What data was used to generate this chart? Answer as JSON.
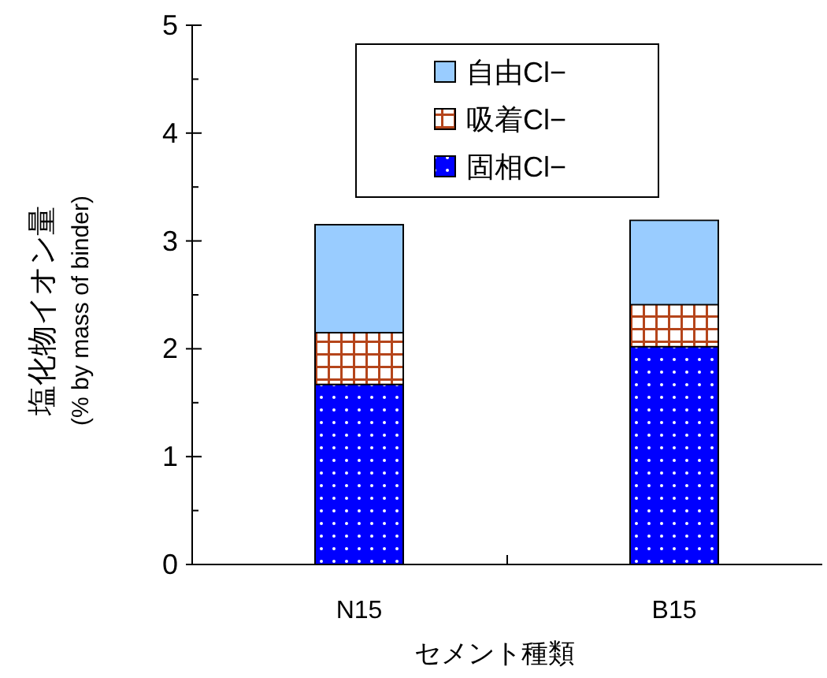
{
  "chart_data": {
    "type": "bar",
    "stacked": true,
    "xlabel": "セメント種類",
    "ylabel": "塩化物イオン量",
    "annotations": [
      "(% by mass of binder)"
    ],
    "categories": [
      "N15",
      "B15"
    ],
    "series": [
      {
        "name": "固相Cl−",
        "color": "#0000ff",
        "values": [
          1.67,
          2.02
        ]
      },
      {
        "name": "吸着Cl−",
        "color": "#b5451b",
        "values": [
          0.48,
          0.39
        ]
      },
      {
        "name": "自由Cl−",
        "color": "#99ccff",
        "values": [
          1.0,
          0.78
        ]
      }
    ],
    "ylim": [
      0,
      5
    ],
    "yticks": [
      0,
      1,
      2,
      3,
      4,
      5
    ],
    "legend": "top",
    "grid": false
  }
}
